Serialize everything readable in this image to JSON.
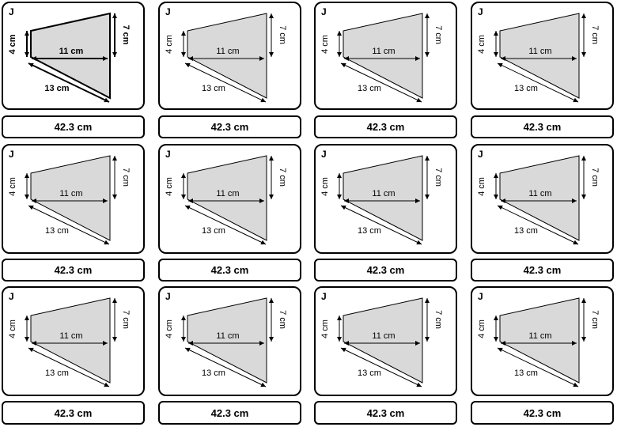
{
  "cards": [
    {
      "letter": "J",
      "left": "4 cm",
      "right": "7 cm",
      "top_width": "11 cm",
      "slant": "13 cm",
      "answer": "42.3 cm",
      "bold": true
    },
    {
      "letter": "J",
      "left": "4 cm",
      "right": "7 cm",
      "top_width": "11 cm",
      "slant": "13 cm",
      "answer": "42.3 cm",
      "bold": false
    },
    {
      "letter": "J",
      "left": "4 cm",
      "right": "7 cm",
      "top_width": "11 cm",
      "slant": "13 cm",
      "answer": "42.3 cm",
      "bold": false
    },
    {
      "letter": "J",
      "left": "4 cm",
      "right": "7 cm",
      "top_width": "11 cm",
      "slant": "13 cm",
      "answer": "42.3 cm",
      "bold": false
    },
    {
      "letter": "J",
      "left": "4 cm",
      "right": "7 cm",
      "top_width": "11 cm",
      "slant": "13 cm",
      "answer": "42.3 cm",
      "bold": false
    },
    {
      "letter": "J",
      "left": "4 cm",
      "right": "7 cm",
      "top_width": "11 cm",
      "slant": "13 cm",
      "answer": "42.3 cm",
      "bold": false
    },
    {
      "letter": "J",
      "left": "4 cm",
      "right": "7 cm",
      "top_width": "11 cm",
      "slant": "13 cm",
      "answer": "42.3 cm",
      "bold": false
    },
    {
      "letter": "J",
      "left": "4 cm",
      "right": "7 cm",
      "top_width": "11 cm",
      "slant": "13 cm",
      "answer": "42.3 cm",
      "bold": false
    },
    {
      "letter": "J",
      "left": "4 cm",
      "right": "7 cm",
      "top_width": "11 cm",
      "slant": "13 cm",
      "answer": "42.3 cm",
      "bold": false
    },
    {
      "letter": "J",
      "left": "4 cm",
      "right": "7 cm",
      "top_width": "11 cm",
      "slant": "13 cm",
      "answer": "42.3 cm",
      "bold": false
    },
    {
      "letter": "J",
      "left": "4 cm",
      "right": "7 cm",
      "top_width": "11 cm",
      "slant": "13 cm",
      "answer": "42.3 cm",
      "bold": false
    },
    {
      "letter": "J",
      "left": "4 cm",
      "right": "7 cm",
      "top_width": "11 cm",
      "slant": "13 cm",
      "answer": "42.3 cm",
      "bold": false
    }
  ],
  "colors": {
    "shape_fill": "#d9d9d9",
    "stroke": "#000000"
  }
}
